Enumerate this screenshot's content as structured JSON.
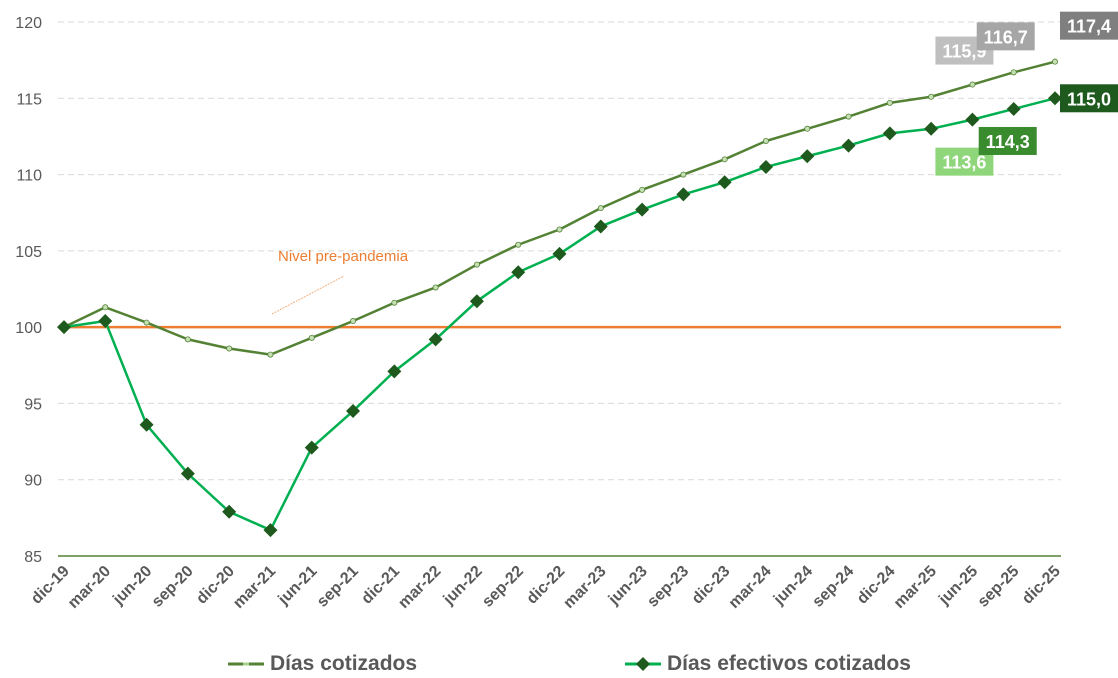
{
  "chart_data": {
    "type": "line",
    "title": "",
    "xlabel": "",
    "ylabel": "",
    "ylim": [
      85,
      120
    ],
    "yticks": [
      85,
      90,
      95,
      100,
      105,
      110,
      115,
      120
    ],
    "grid": true,
    "legend_position": "bottom",
    "categories": [
      "dic-19",
      "mar-20",
      "jun-20",
      "sep-20",
      "dic-20",
      "mar-21",
      "jun-21",
      "sep-21",
      "dic-21",
      "mar-22",
      "jun-22",
      "sep-22",
      "dic-22",
      "mar-23",
      "jun-23",
      "sep-23",
      "dic-23",
      "mar-24",
      "jun-24",
      "sep-24",
      "dic-24",
      "mar-25",
      "jun-25",
      "sep-25",
      "dic-25"
    ],
    "series": [
      {
        "name": "Días cotizados",
        "color": "#548235",
        "marker": "dash",
        "values": [
          100.0,
          101.3,
          100.3,
          99.2,
          98.6,
          98.2,
          99.3,
          100.4,
          101.6,
          102.6,
          104.1,
          105.4,
          106.4,
          107.8,
          109.0,
          110.0,
          111.0,
          112.2,
          113.0,
          113.8,
          114.7,
          115.1,
          115.9,
          116.7,
          117.4
        ]
      },
      {
        "name": "Días efectivos cotizados",
        "color": "#00B050",
        "marker": "diamond",
        "marker_color": "#1E5A1E",
        "values": [
          100.0,
          100.4,
          93.6,
          90.4,
          87.9,
          86.7,
          92.1,
          94.5,
          97.1,
          99.2,
          101.7,
          103.6,
          104.8,
          106.6,
          107.7,
          108.7,
          109.5,
          110.5,
          111.2,
          111.9,
          112.7,
          113.0,
          113.6,
          114.3,
          115.0
        ]
      }
    ],
    "reference_line": {
      "value": 100,
      "label": "Nivel pre-pandemia",
      "color": "#ED7D31"
    },
    "data_labels": [
      {
        "text": "115,9",
        "series": 0,
        "index": 22,
        "bg": "#BFBFBF"
      },
      {
        "text": "116,7",
        "series": 0,
        "index": 23,
        "bg": "#A6A6A6"
      },
      {
        "text": "117,4",
        "series": 0,
        "index": 24,
        "bg": "#7F7F7F"
      },
      {
        "text": "113,6",
        "series": 1,
        "index": 22,
        "bg": "#8FD67A"
      },
      {
        "text": "114,3",
        "series": 1,
        "index": 23,
        "bg": "#3A8A2E"
      },
      {
        "text": "115,0",
        "series": 1,
        "index": 24,
        "bg": "#1E5A1E"
      }
    ]
  }
}
